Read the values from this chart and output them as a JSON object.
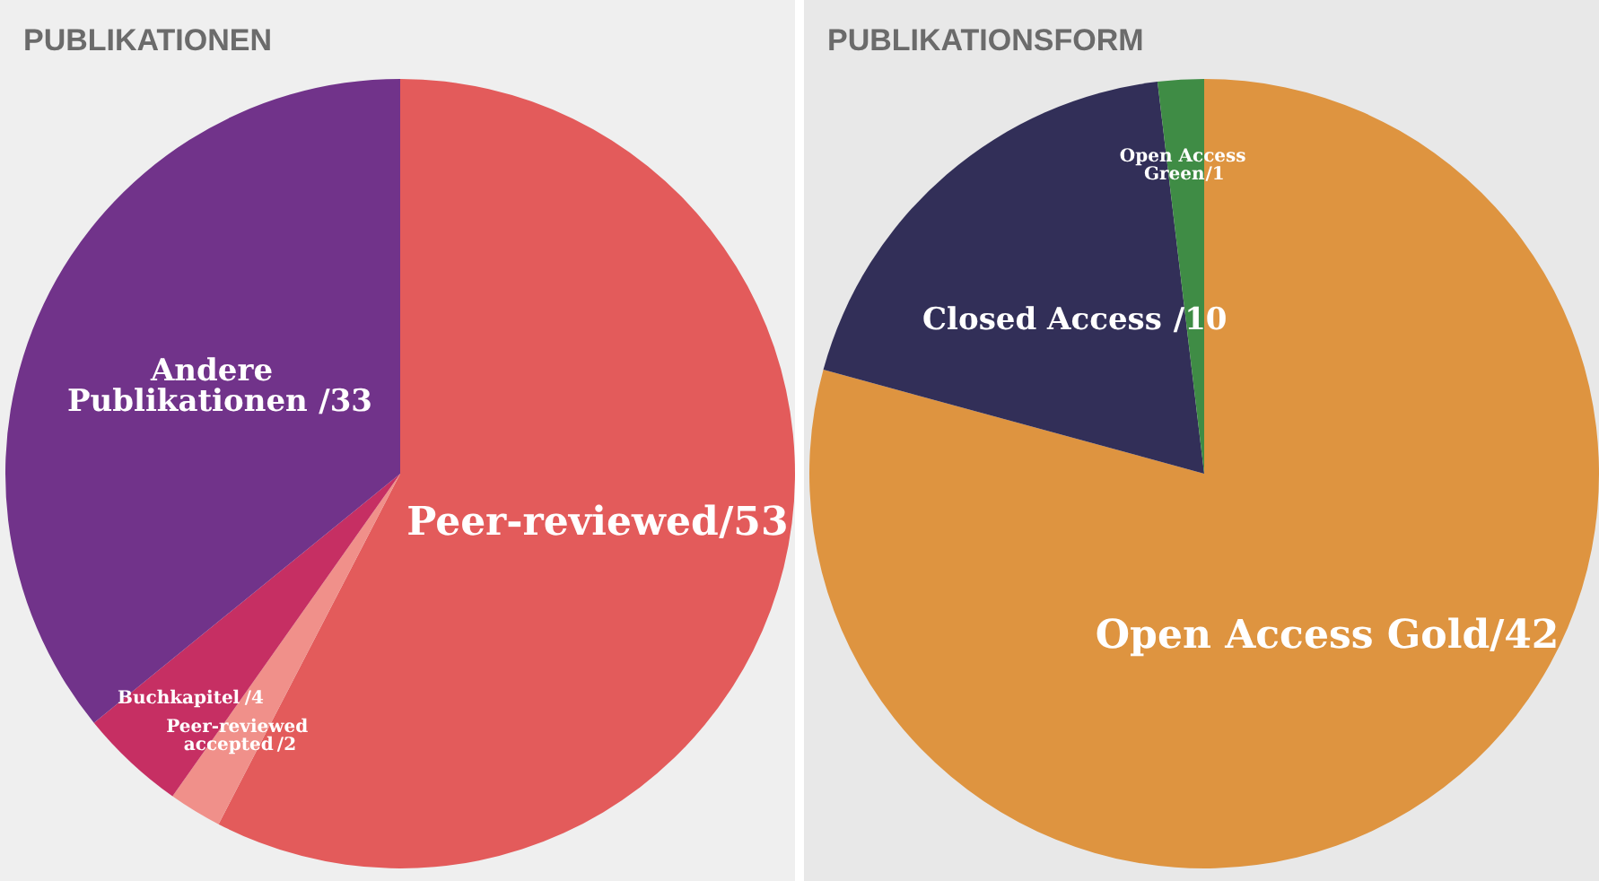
{
  "chart_data": [
    {
      "type": "pie",
      "title": "PUBLIKATIONEN",
      "categories": [
        "Peer-reviewed",
        "Peer-reviewed accepted",
        "Buchkapitel",
        "Andere Publikationen"
      ],
      "values": [
        53,
        2,
        4,
        33
      ],
      "colors": [
        "#e35b5b",
        "#f0908a",
        "#c62f63",
        "#71338a"
      ],
      "value_labels": [
        "/53",
        "/2",
        "/4",
        "/33"
      ],
      "legend": false
    },
    {
      "type": "pie",
      "title": "PUBLIKATIONSFORM",
      "categories": [
        "Open Access Gold",
        "Closed Access",
        "Open Access Green"
      ],
      "values": [
        42,
        10,
        1
      ],
      "colors": [
        "#de9440",
        "#322f58",
        "#3f8c45"
      ],
      "value_labels": [
        "/42",
        "/10",
        "/1"
      ],
      "legend": false
    }
  ]
}
